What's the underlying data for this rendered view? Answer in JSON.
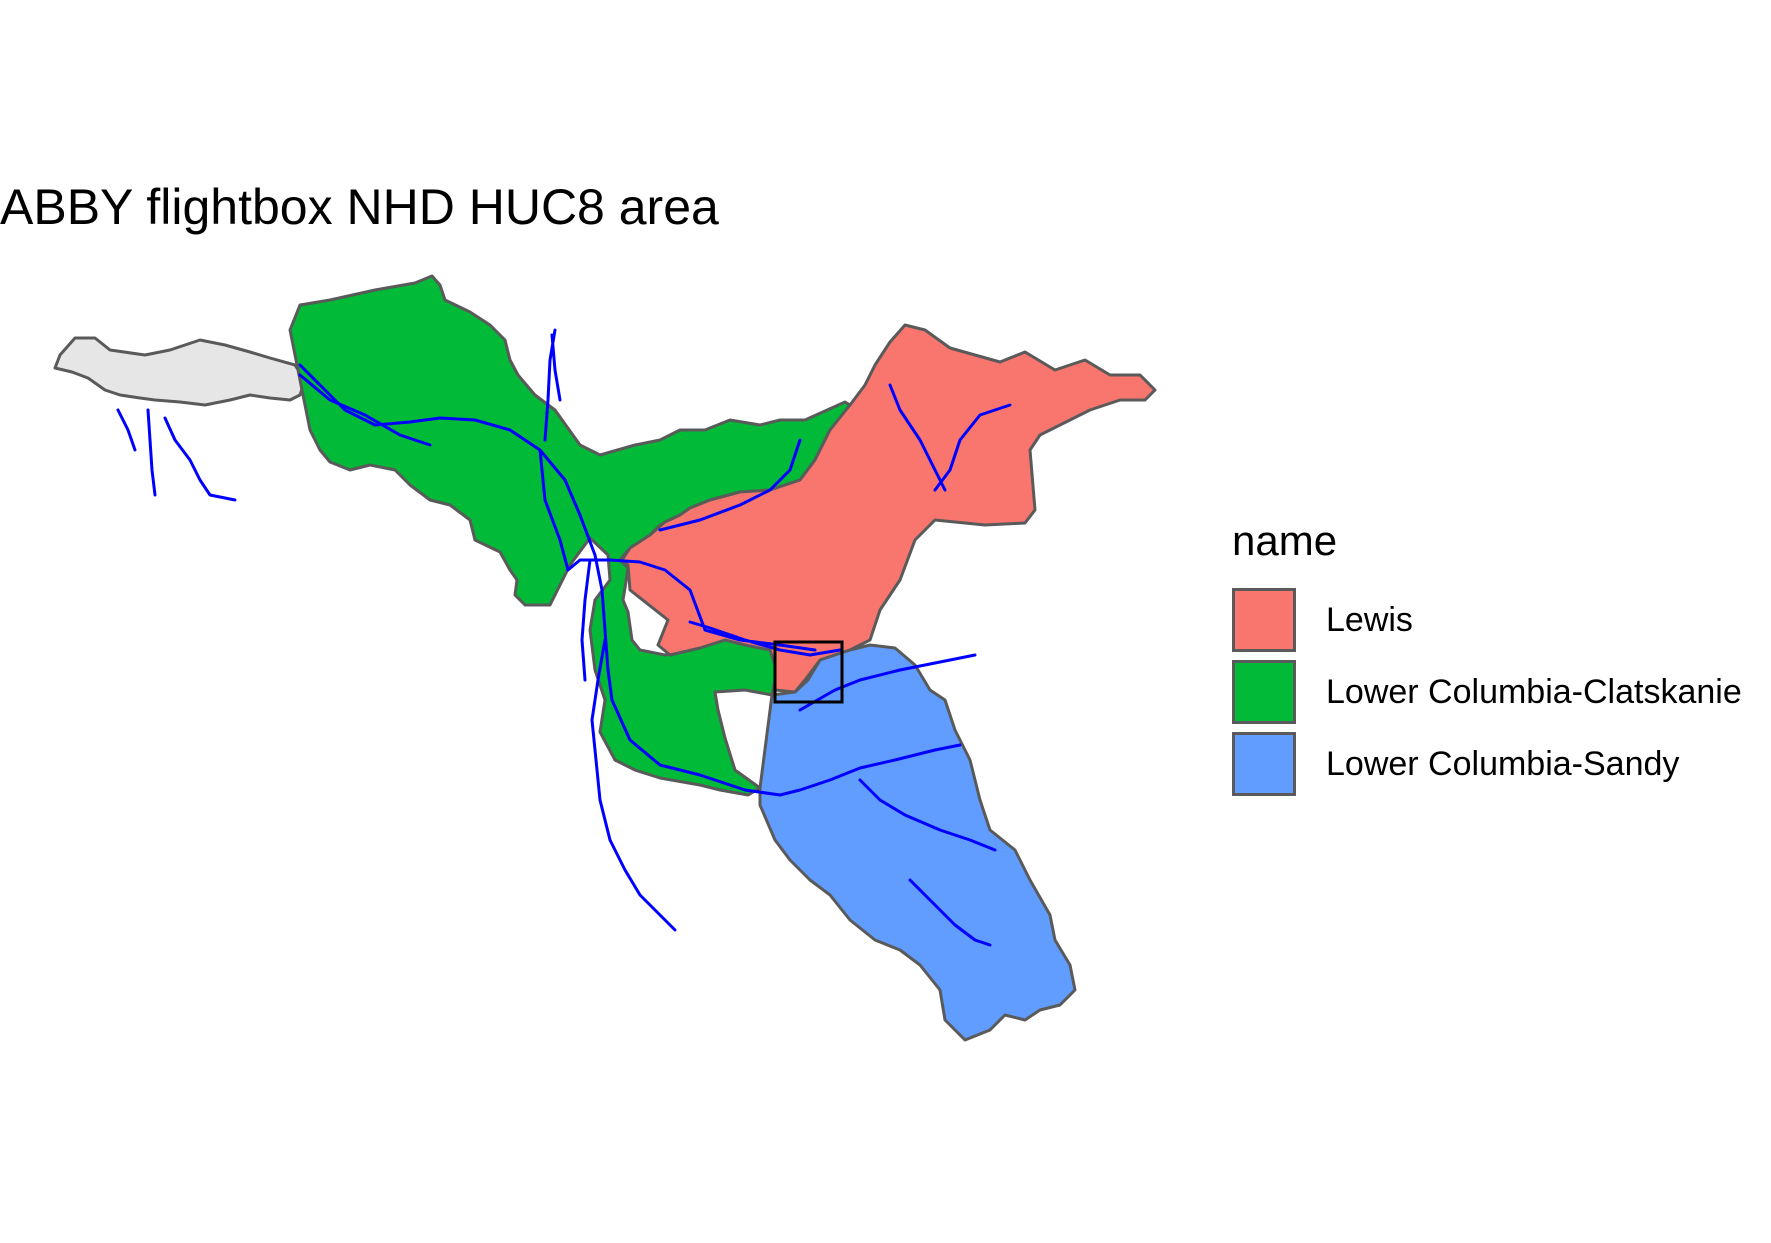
{
  "title": "ABBY flightbox NHD HUC8 area",
  "legend": {
    "title": "name",
    "items": [
      {
        "label": "Lewis",
        "color": "#F8766D"
      },
      {
        "label": "Lower Columbia-Clatskanie",
        "color": "#00BA38"
      },
      {
        "label": "Lower Columbia-Sandy",
        "color": "#619CFF"
      }
    ]
  },
  "colors": {
    "other_area": "#E6E6E6",
    "boundary": "#5A5A5A",
    "rivers": "#0000FF",
    "flightbox": "#000000"
  }
}
